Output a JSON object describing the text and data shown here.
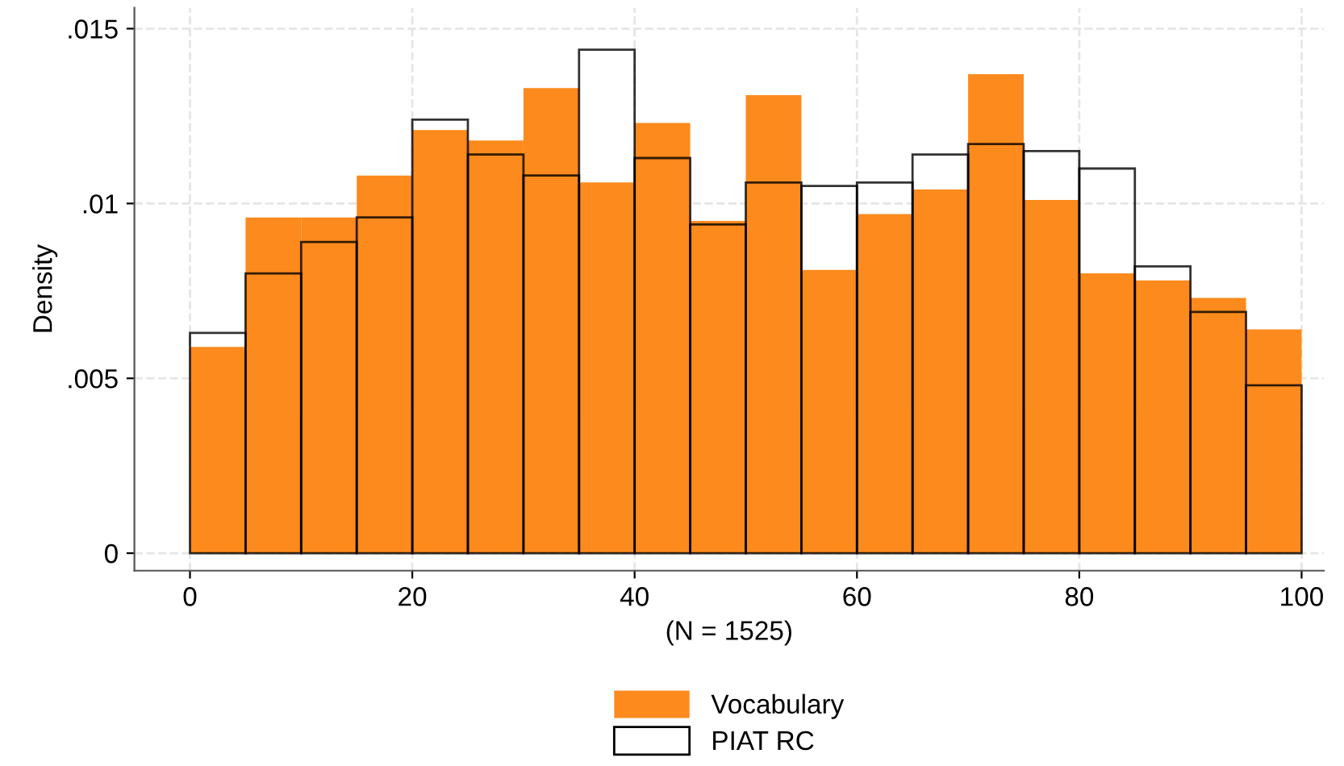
{
  "chart_data": {
    "type": "histogram",
    "xlabel": "(N = 1525)",
    "ylabel": "Density",
    "bins": [
      0,
      5,
      10,
      15,
      20,
      25,
      30,
      35,
      40,
      45,
      50,
      55,
      60,
      65,
      70,
      75,
      80,
      85,
      90,
      95,
      100
    ],
    "series": [
      {
        "name": "Vocabulary",
        "color": "#fd8a1c",
        "values": [
          0.0059,
          0.0096,
          0.0096,
          0.0108,
          0.0121,
          0.0118,
          0.0133,
          0.0106,
          0.0123,
          0.0095,
          0.0131,
          0.0081,
          0.0097,
          0.0104,
          0.0137,
          0.0101,
          0.008,
          0.0078,
          0.0073,
          0.0064
        ]
      },
      {
        "name": "PIAT RC",
        "color": "#000000",
        "values": [
          0.0063,
          0.008,
          0.0089,
          0.0096,
          0.0124,
          0.0114,
          0.0108,
          0.0144,
          0.0113,
          0.0094,
          0.0106,
          0.0105,
          0.0106,
          0.0114,
          0.0117,
          0.0115,
          0.011,
          0.0082,
          0.0069,
          0.0048
        ]
      }
    ],
    "xlim": [
      -5,
      102
    ],
    "xticks": [
      0,
      20,
      40,
      60,
      80,
      100
    ],
    "ylim": [
      -0.0005,
      0.0156
    ],
    "yticks": [
      {
        "value": 0,
        "label": "0"
      },
      {
        "value": 0.005,
        "label": ".005"
      },
      {
        "value": 0.01,
        "label": ".01"
      },
      {
        "value": 0.015,
        "label": ".015"
      }
    ],
    "grid": true,
    "line_style": "dashed",
    "legend": "bottom"
  }
}
